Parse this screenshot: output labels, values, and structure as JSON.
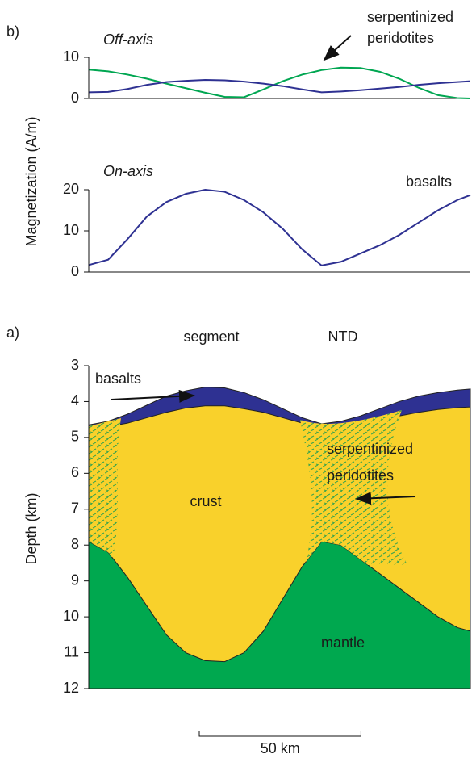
{
  "chart_data": [
    {
      "type": "line",
      "panel_label": "b)",
      "subtitle": "Off-axis",
      "ylabel": "Magnetization (A/m)",
      "annotation": {
        "lines": [
          "serpentinized",
          "peridotites"
        ]
      },
      "x": [
        0,
        6,
        12,
        18,
        24,
        30,
        36,
        42,
        48,
        54,
        60,
        66,
        72,
        78,
        84,
        90,
        96,
        102,
        108,
        114,
        118
      ],
      "xlim": [
        0,
        118
      ],
      "ylim": [
        0,
        10
      ],
      "yticks": [
        0,
        10
      ],
      "series": [
        {
          "color": "#00a651",
          "values": [
            7,
            6.6,
            5.8,
            4.8,
            3.6,
            2.5,
            1.4,
            0.4,
            0.3,
            2.2,
            4.2,
            5.8,
            6.9,
            7.5,
            7.4,
            6.5,
            4.8,
            2.6,
            0.8,
            0.1,
            0
          ]
        },
        {
          "color": "#2e3192",
          "values": [
            1.5,
            1.6,
            2.3,
            3.3,
            4.0,
            4.3,
            4.5,
            4.4,
            4.1,
            3.6,
            3.0,
            2.2,
            1.5,
            1.7,
            2.0,
            2.4,
            2.8,
            3.3,
            3.7,
            4.0,
            4.2
          ]
        }
      ]
    },
    {
      "type": "line",
      "subtitle": "On-axis",
      "x": [
        0,
        6,
        12,
        18,
        24,
        30,
        36,
        42,
        48,
        54,
        60,
        66,
        72,
        78,
        84,
        90,
        96,
        102,
        108,
        114,
        118
      ],
      "xlim": [
        0,
        118
      ],
      "ylim": [
        0,
        20
      ],
      "yticks": [
        0,
        10,
        20
      ],
      "series": [
        {
          "name": "basalts",
          "color": "#2e3192",
          "values": [
            1.7,
            3,
            8,
            13.5,
            17,
            19,
            20,
            19.5,
            17.5,
            14.5,
            10.5,
            5.5,
            1.6,
            2.5,
            4.5,
            6.5,
            9,
            12,
            15,
            17.5,
            18.7
          ]
        }
      ]
    },
    {
      "type": "area",
      "panel_label": "a)",
      "column_labels": [
        "segment",
        "NTD"
      ],
      "ylabel": "Depth (km)",
      "annotation": {
        "lines": [
          "serpentinized",
          "peridotites"
        ]
      },
      "x": [
        0,
        6,
        12,
        18,
        24,
        30,
        36,
        42,
        48,
        54,
        60,
        66,
        72,
        78,
        84,
        90,
        96,
        102,
        108,
        114,
        118
      ],
      "xlim": [
        0,
        118
      ],
      "ylim": [
        3,
        12
      ],
      "yticks": [
        3,
        4,
        5,
        6,
        7,
        8,
        9,
        10,
        11,
        12
      ],
      "y_inverted": true,
      "series": [
        {
          "name": "basalts",
          "color": "#2e3192",
          "values": [
            4.65,
            4.55,
            4.35,
            4.1,
            3.85,
            3.7,
            3.6,
            3.62,
            3.75,
            3.95,
            4.2,
            4.45,
            4.62,
            4.55,
            4.4,
            4.2,
            4.0,
            3.85,
            3.75,
            3.68,
            3.65
          ]
        },
        {
          "name": "crust",
          "color": "#f9d12b",
          "values": [
            4.75,
            4.7,
            4.6,
            4.45,
            4.3,
            4.18,
            4.12,
            4.12,
            4.2,
            4.3,
            4.45,
            4.6,
            4.72,
            4.68,
            4.6,
            4.5,
            4.4,
            4.3,
            4.22,
            4.17,
            4.15
          ]
        },
        {
          "name": "mantle",
          "color": "#00a84f",
          "values": [
            7.9,
            8.2,
            8.9,
            9.7,
            10.5,
            11.0,
            11.22,
            11.25,
            11.0,
            10.4,
            9.5,
            8.6,
            7.9,
            8.0,
            8.4,
            8.8,
            9.2,
            9.6,
            10.0,
            10.3,
            10.4
          ]
        }
      ],
      "scalebar": {
        "value": 50,
        "label": "50 km"
      }
    }
  ]
}
